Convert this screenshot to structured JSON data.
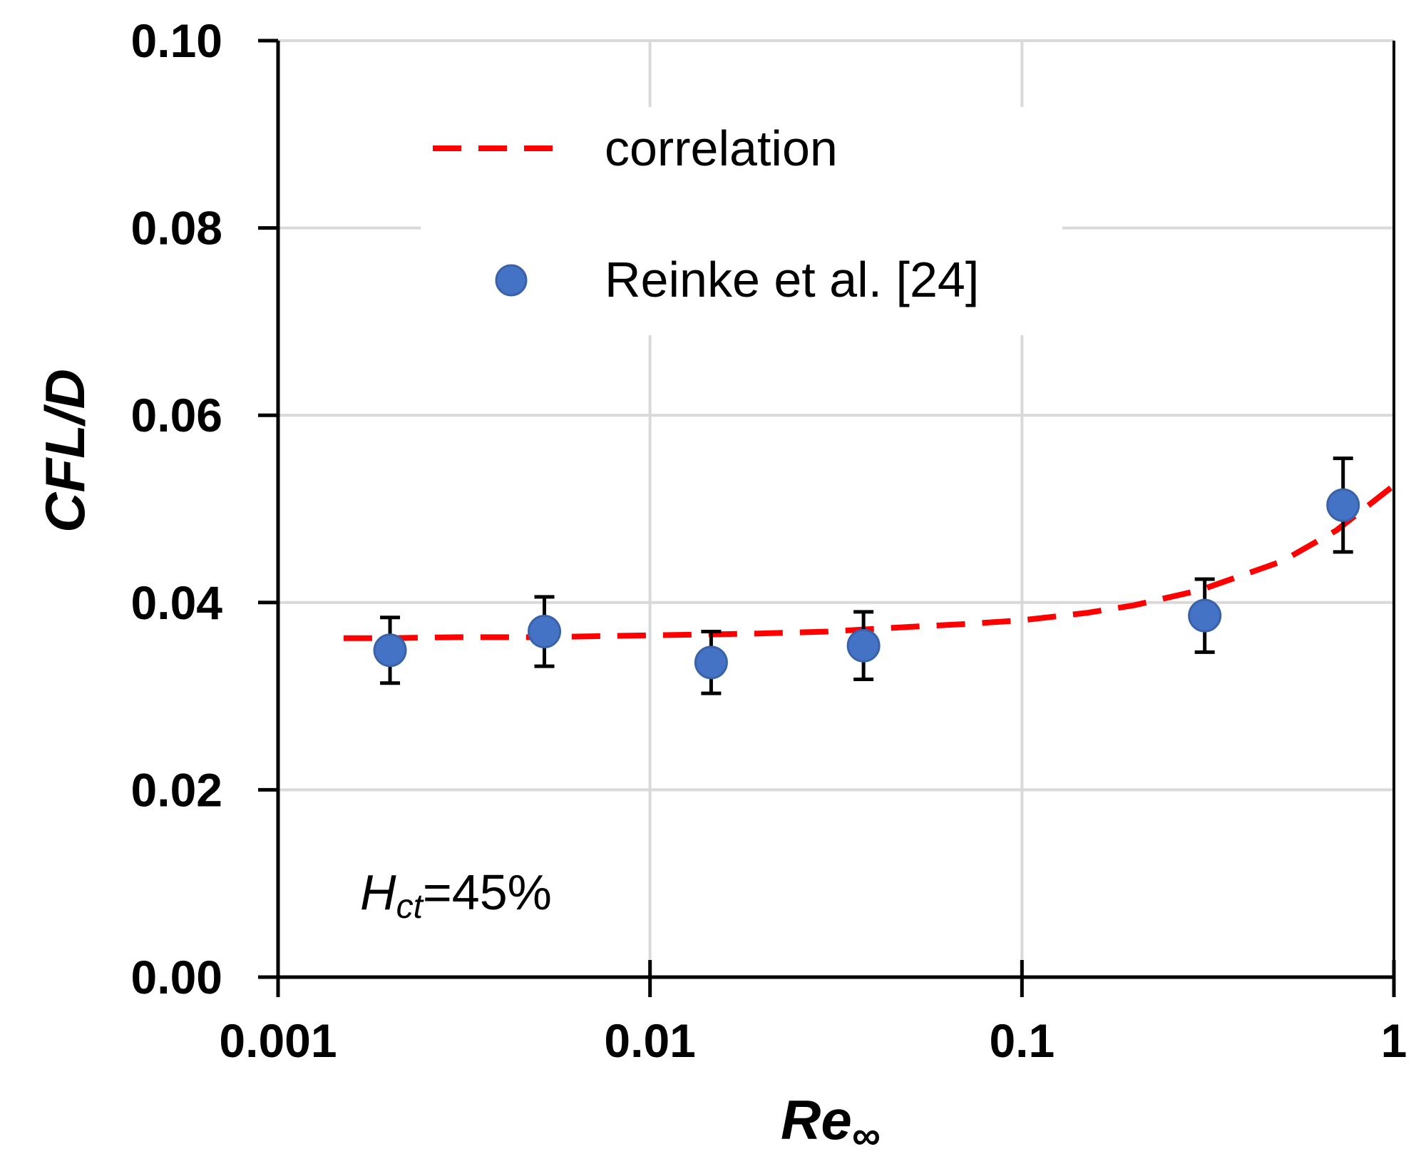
{
  "chart_data": {
    "type": "scatter",
    "title": "",
    "xlabel": "Re",
    "xlabel_subscript": "∞",
    "ylabel": "CFL/D",
    "xscale": "log",
    "xlim": [
      0.001,
      1
    ],
    "ylim": [
      0.0,
      0.1
    ],
    "xticks": [
      0.001,
      0.01,
      0.1,
      1
    ],
    "xtick_labels": [
      "0.001",
      "0.01",
      "0.1",
      "1"
    ],
    "yticks": [
      0.0,
      0.02,
      0.04,
      0.06,
      0.08,
      0.1
    ],
    "ytick_labels": [
      "0.00",
      "0.02",
      "0.04",
      "0.06",
      "0.08",
      "0.10"
    ],
    "grid": true,
    "legend_position": "top",
    "series": [
      {
        "name": "correlation",
        "kind": "dashed-line",
        "color": "#ff0000",
        "x": [
          0.0015,
          0.002,
          0.003,
          0.005,
          0.007,
          0.01,
          0.015,
          0.02,
          0.03,
          0.05,
          0.07,
          0.1,
          0.15,
          0.2,
          0.3,
          0.5,
          0.7,
          1.0
        ],
        "y": [
          0.0362,
          0.0362,
          0.0363,
          0.0363,
          0.0364,
          0.0365,
          0.0366,
          0.0367,
          0.0369,
          0.0374,
          0.0377,
          0.0381,
          0.0389,
          0.0397,
          0.0413,
          0.0444,
          0.0477,
          0.0525
        ]
      },
      {
        "name": "Reinke et al. [24]",
        "kind": "markers-with-error-bars",
        "color": "#4472c4",
        "x": [
          0.002,
          0.0052,
          0.0146,
          0.0375,
          0.31,
          0.73
        ],
        "y": [
          0.0349,
          0.0369,
          0.0336,
          0.0354,
          0.0386,
          0.0504
        ],
        "yerr": [
          0.0035,
          0.0037,
          0.0033,
          0.0036,
          0.0039,
          0.005
        ]
      }
    ],
    "annotations": [
      {
        "text_main": "H",
        "text_sub": "ct",
        "text_rest": "=45%"
      }
    ]
  }
}
